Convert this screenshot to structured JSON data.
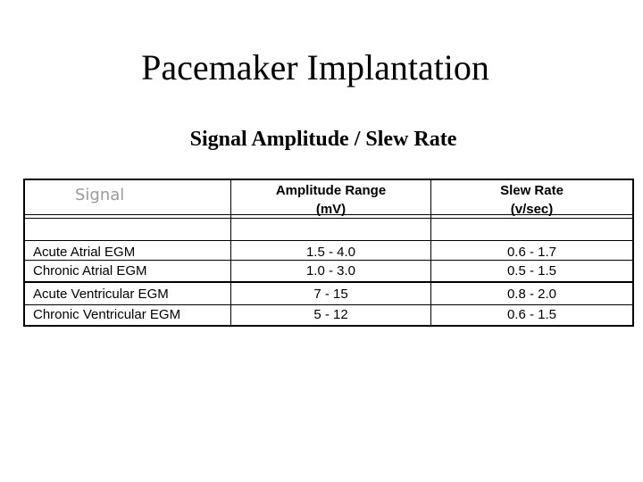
{
  "slide": {
    "title": "Pacemaker Implantation",
    "subtitle": "Signal Amplitude / Slew Rate"
  },
  "table": {
    "signal_header": "Signal",
    "amplitude_header_line1": "Amplitude Range",
    "amplitude_header_line2": "(mV)",
    "slew_header_line1": "Slew Rate",
    "slew_header_line2": "(v/sec)",
    "rows": [
      {
        "signal": "Acute Atrial EGM",
        "amplitude": "1.5 - 4.0",
        "slew": "0.6 - 1.7"
      },
      {
        "signal": "Chronic Atrial EGM",
        "amplitude": "1.0 - 3.0",
        "slew": "0.5 - 1.5"
      },
      {
        "signal": "Acute Ventricular EGM",
        "amplitude": "7 - 15",
        "slew": "0.8 - 2.0"
      },
      {
        "signal": "Chronic Ventricular EGM",
        "amplitude": "5 - 12",
        "slew": "0.6 - 1.5"
      }
    ]
  }
}
